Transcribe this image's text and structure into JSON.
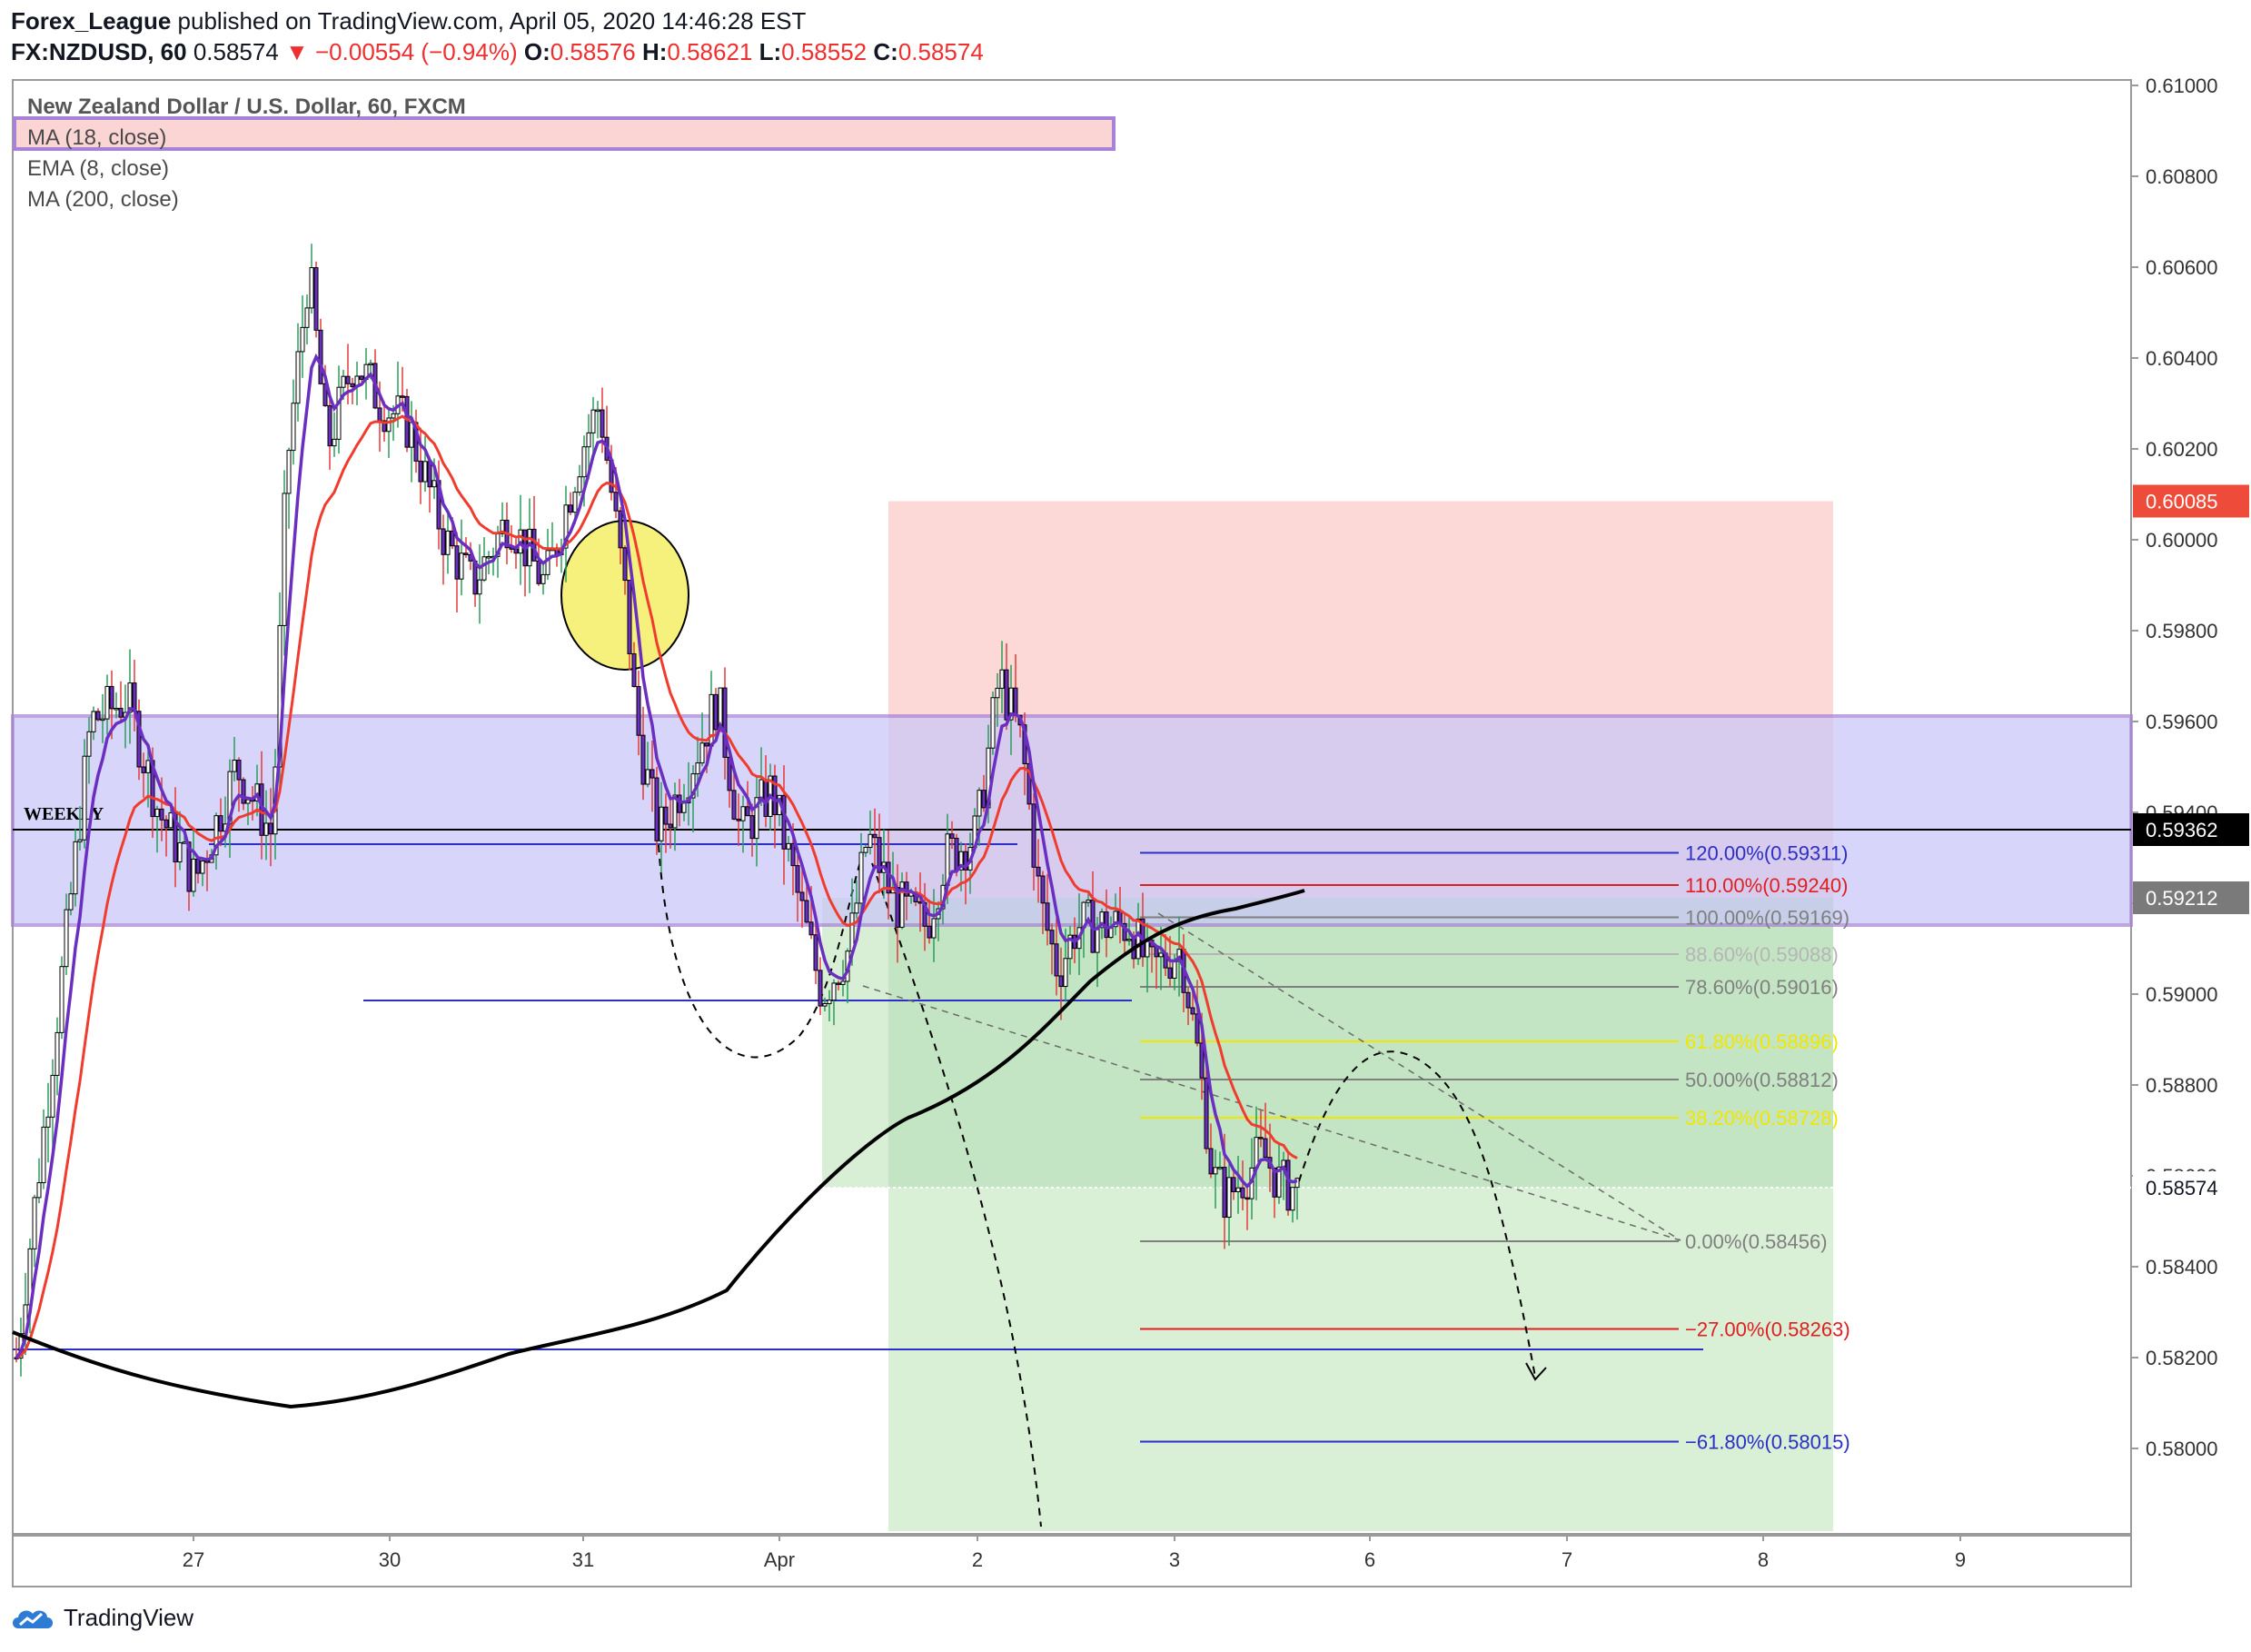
{
  "header": {
    "publisher": "Forex_League",
    "published_text": "published on TradingView.com, April 05, 2020 14:46:28 EST",
    "symbol": "FX:NZDUSD, 60",
    "last": "0.58574",
    "change": "▼ −0.00554 (−0.94%)",
    "o_label": "O:",
    "o_val": "0.58576",
    "h_label": "H:",
    "h_val": "0.58621",
    "l_label": "L:",
    "l_val": "0.58552",
    "c_label": "C:",
    "c_val": "0.58574"
  },
  "legend": {
    "title": "New Zealand Dollar / U.S. Dollar, 60, FXCM",
    "ma18": "MA (18, close)",
    "ema8": "EMA (8, close)",
    "ma200": "MA (200, close)"
  },
  "footer": {
    "brand": "TradingView",
    "logo_icon": "tradingview-cloud-icon"
  },
  "colors": {
    "ema8": "#6a2fc0",
    "ma18": "#f03c2e",
    "ma200": "#000000",
    "zone_fill": "#c9c6f7",
    "zone_border": "#a683d8",
    "stop_fill": "#fcd9d7",
    "target_fill": "#d9efd6",
    "target_fill_dark": "#bfe3bf",
    "circle": "#f6f07c"
  },
  "chart_data": {
    "type": "candlestick",
    "y_axis_ticks": [
      "0.61000",
      "0.60800",
      "0.60600",
      "0.60400",
      "0.60200",
      "0.60000",
      "0.59800",
      "0.59600",
      "0.59400",
      "0.59200",
      "0.59000",
      "0.58800",
      "0.58600",
      "0.58400",
      "0.58200",
      "0.58000"
    ],
    "x_axis_ticks": [
      "27",
      "30",
      "31",
      "Apr",
      "2",
      "3",
      "6",
      "7",
      "8",
      "9"
    ],
    "price_tags": [
      {
        "label": "0.60085",
        "style": "red"
      },
      {
        "label": "0.59362",
        "style": "black"
      },
      {
        "label": "0.59212",
        "style": "gray"
      },
      {
        "label": "0.58574",
        "style": "plain"
      }
    ],
    "zone_label": "WEEKLY",
    "fib_levels": [
      {
        "label": "120.00%(0.59311)",
        "price": 0.59311,
        "color": "#2b2fc7"
      },
      {
        "label": "110.00%(0.59240)",
        "price": 0.5924,
        "color": "#e02020"
      },
      {
        "label": "100.00%(0.59169)",
        "price": 0.59169,
        "color": "#7f7f7f"
      },
      {
        "label": "88.60%(0.59088)",
        "price": 0.59088,
        "color": "#b5b5b5"
      },
      {
        "label": "78.60%(0.59016)",
        "price": 0.59016,
        "color": "#7f7f7f"
      },
      {
        "label": "61.80%(0.58896)",
        "price": 0.58896,
        "color": "#f2e600"
      },
      {
        "label": "50.00%(0.58812)",
        "price": 0.58812,
        "color": "#7f7f7f"
      },
      {
        "label": "38.20%(0.58728)",
        "price": 0.58728,
        "color": "#f2e600"
      },
      {
        "label": "0.00%(0.58456)",
        "price": 0.58456,
        "color": "#7f7f7f"
      },
      {
        "label": "−27.00%(0.58263)",
        "price": 0.58263,
        "color": "#e02020"
      },
      {
        "label": "−61.80%(0.58015)",
        "price": 0.58015,
        "color": "#2b2fc7"
      }
    ],
    "weekly_zone": [
      0.59152,
      0.59612
    ],
    "horizontal_lines": [
      0.59362,
      0.58986,
      0.58218
    ],
    "ma200_current": 0.59212,
    "last_price": 0.58574
  }
}
